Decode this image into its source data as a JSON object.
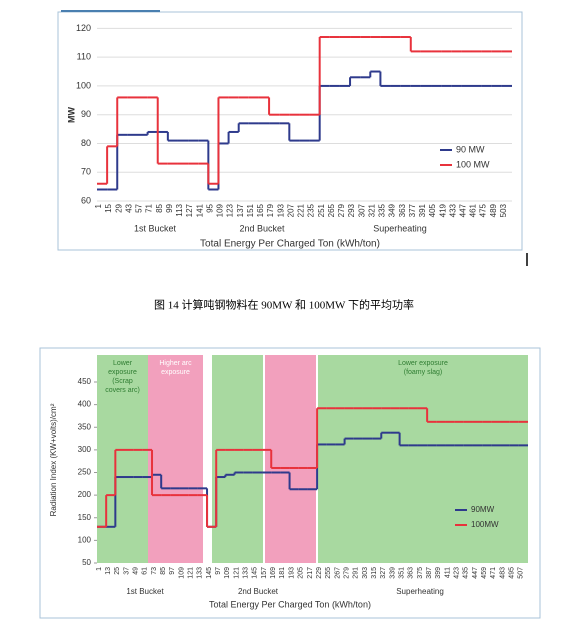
{
  "chart_data": [
    {
      "type": "line",
      "x_label": "Total Energy Per Charged Ton (kWh/ton)",
      "y_label": "MW",
      "categories": [
        "1",
        "15",
        "29",
        "43",
        "57",
        "71",
        "85",
        "99",
        "113",
        "127",
        "141",
        "95",
        "109",
        "123",
        "137",
        "151",
        "165",
        "179",
        "193",
        "207",
        "221",
        "235",
        "251",
        "265",
        "279",
        "293",
        "307",
        "321",
        "335",
        "349",
        "363",
        "377",
        "391",
        "405",
        "419",
        "433",
        "447",
        "461",
        "475",
        "489",
        "503"
      ],
      "series": [
        {
          "name": "90 MW",
          "color": "#2e3a8c",
          "values": [
            64,
            64,
            83,
            83,
            83,
            84,
            84,
            81,
            81,
            81,
            81,
            64,
            80,
            84,
            87,
            87,
            87,
            87,
            87,
            81,
            81,
            81,
            100,
            100,
            100,
            103,
            103,
            105,
            100,
            100,
            100,
            100,
            100,
            100,
            100,
            100,
            100,
            100,
            100,
            100,
            100
          ]
        },
        {
          "name": "100 MW",
          "color": "#e8323c",
          "values": [
            66,
            79,
            96,
            96,
            96,
            96,
            73,
            73,
            73,
            73,
            73,
            66,
            96,
            96,
            96,
            96,
            96,
            90,
            90,
            90,
            90,
            90,
            117,
            117,
            117,
            117,
            117,
            117,
            117,
            117,
            117,
            112,
            112,
            112,
            112,
            112,
            112,
            112,
            112,
            112,
            112
          ]
        }
      ],
      "ylim": [
        60,
        125
      ],
      "yticks": [
        60,
        70,
        80,
        90,
        100,
        110,
        120
      ],
      "grid": true,
      "legend": "lower right",
      "annotations": [
        "1st Bucket",
        "2nd Bucket",
        "Superheating"
      ]
    },
    {
      "type": "line",
      "x_label": "Total Energy Per Charged Ton (kWh/ton)",
      "y_label": "Radiation Index (KW+volts)/cm²",
      "categories": [
        "1",
        "13",
        "25",
        "37",
        "49",
        "61",
        "73",
        "85",
        "97",
        "109",
        "121",
        "133",
        "145",
        "97",
        "109",
        "121",
        "133",
        "145",
        "157",
        "169",
        "181",
        "193",
        "205",
        "217",
        "229",
        "255",
        "267",
        "279",
        "291",
        "303",
        "315",
        "327",
        "339",
        "351",
        "363",
        "375",
        "387",
        "399",
        "411",
        "423",
        "435",
        "447",
        "459",
        "471",
        "483",
        "495",
        "507"
      ],
      "series": [
        {
          "name": "90MW",
          "color": "#2e3a8c",
          "values": [
            130,
            130,
            240,
            240,
            240,
            240,
            245,
            215,
            215,
            215,
            215,
            215,
            130,
            240,
            245,
            250,
            250,
            250,
            250,
            250,
            250,
            213,
            213,
            213,
            312,
            312,
            312,
            325,
            325,
            325,
            325,
            338,
            338,
            310,
            310,
            310,
            310,
            310,
            310,
            310,
            310,
            310,
            310,
            310,
            310,
            310,
            310
          ]
        },
        {
          "name": "100MW",
          "color": "#e8323c",
          "values": [
            130,
            200,
            300,
            300,
            300,
            300,
            200,
            200,
            200,
            200,
            200,
            200,
            130,
            300,
            300,
            300,
            300,
            300,
            300,
            260,
            260,
            260,
            260,
            260,
            392,
            392,
            392,
            392,
            392,
            392,
            392,
            392,
            392,
            392,
            392,
            392,
            362,
            362,
            362,
            362,
            362,
            362,
            362,
            362,
            362,
            362,
            362
          ]
        }
      ],
      "ylim": [
        50,
        475
      ],
      "yticks": [
        50,
        100,
        150,
        200,
        250,
        300,
        350,
        400,
        450
      ],
      "grid": false,
      "legend": "lower right",
      "annotations": [
        "1st Bucket",
        "2nd Bucket",
        "Superheating"
      ],
      "bands": [
        {
          "color": "#a8d9a0",
          "lines": [
            "Lower",
            "exposure",
            "(Scrap",
            "covers arc)"
          ]
        },
        {
          "color": "#f2a0bd",
          "lines": [
            "Higher arc",
            "exposure"
          ]
        },
        {
          "color": "#a8d9a0",
          "lines": []
        },
        {
          "color": "#f2a0bd",
          "lines": []
        },
        {
          "color": "#a8d9a0",
          "lines": [
            "Lower exposure",
            "(foamy slag)"
          ]
        }
      ]
    }
  ],
  "caption": "图 14   计算吨钢物料在 90MW 和 100MW 下的平均功率"
}
